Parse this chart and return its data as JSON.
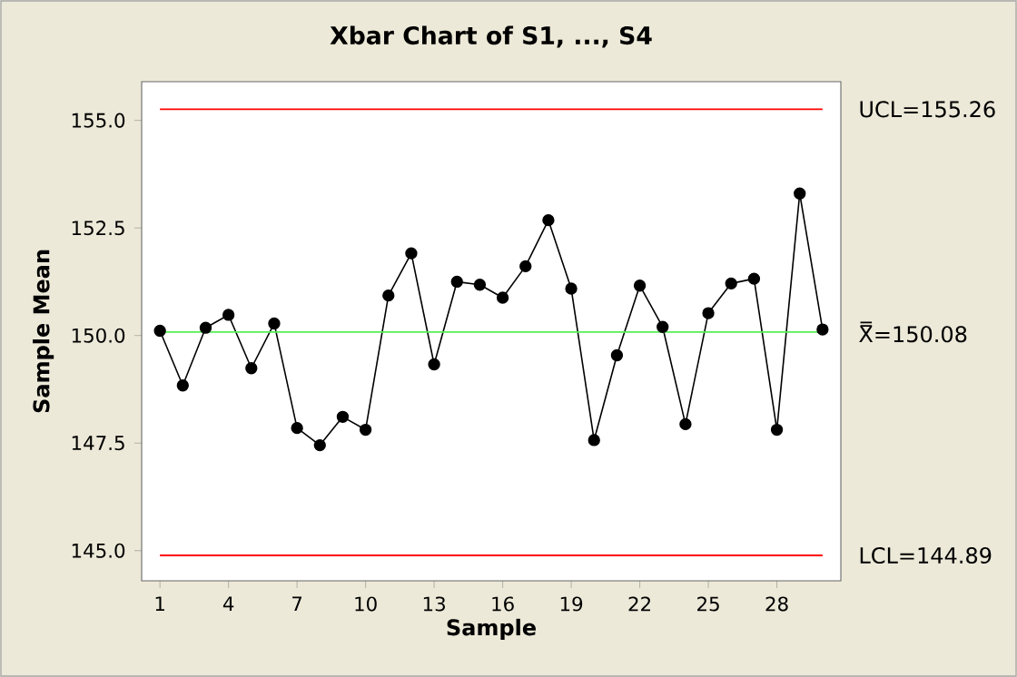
{
  "chart_data": {
    "type": "line",
    "title": "Xbar Chart of S1, ..., S4",
    "xlabel": "Sample",
    "ylabel": "Sample Mean",
    "x": [
      1,
      2,
      3,
      4,
      5,
      6,
      7,
      8,
      9,
      10,
      11,
      12,
      13,
      14,
      15,
      16,
      17,
      18,
      19,
      20,
      21,
      22,
      23,
      24,
      25,
      26,
      27,
      28,
      29,
      30
    ],
    "series": [
      {
        "color": "#000000",
        "values": [
          150.11,
          148.84,
          150.18,
          150.48,
          149.24,
          150.28,
          147.85,
          147.45,
          148.11,
          147.81,
          150.93,
          151.91,
          149.33,
          151.25,
          151.18,
          150.88,
          151.61,
          152.68,
          151.09,
          147.57,
          149.54,
          151.16,
          150.2,
          147.94,
          150.52,
          151.21,
          151.32,
          147.81,
          153.3,
          150.14
        ]
      }
    ],
    "xlim": [
      0.2,
      30.8
    ],
    "ylim": [
      144.3,
      155.9
    ],
    "xticks": [
      1,
      4,
      7,
      10,
      13,
      16,
      19,
      22,
      25,
      28
    ],
    "yticks": [
      {
        "value": 145,
        "label": "145.0"
      },
      {
        "value": 147.5,
        "label": "147.5"
      },
      {
        "value": 150,
        "label": "150.0"
      },
      {
        "value": 152.5,
        "label": "152.5"
      },
      {
        "value": 155,
        "label": "155.0"
      }
    ],
    "ref_lines": [
      {
        "axis": "y",
        "value": 155.26,
        "label": "UCL=155.26",
        "color": "#ff0000"
      },
      {
        "axis": "y",
        "value": 150.08,
        "label": "X̿=150.08",
        "color": "#55ee55"
      },
      {
        "axis": "y",
        "value": 144.89,
        "label": "LCL=144.89",
        "color": "#ff0000"
      }
    ],
    "grid": false,
    "marker": "circle",
    "line_style": "solid"
  }
}
